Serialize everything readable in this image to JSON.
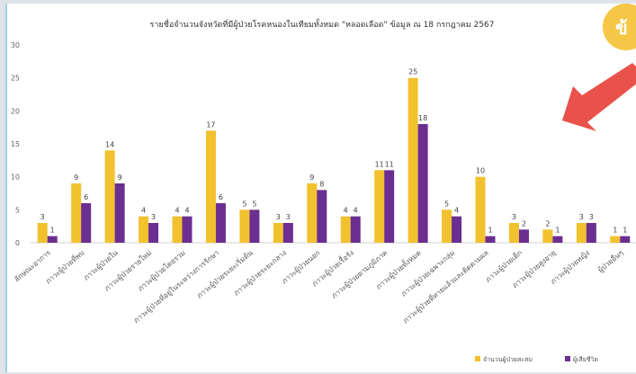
{
  "colors": {
    "series_a": "#f2c12e",
    "series_b": "#6b2e91",
    "arrow": "#e8524a",
    "badge": "#f6c646",
    "grid": "#e6e6e6",
    "panel_border": "#9ed3e6"
  },
  "badge": {
    "text": "ข้",
    "icon": "badge-circle"
  },
  "chart_data": {
    "type": "bar",
    "title": "รายชื่อจำนวนจังหวัดที่มีผู้ป่วยโรคหนองในเทียมทั้งหมด \"หลอดเลือด\" ข้อมูล ณ 18 กรกฎาคม 2567",
    "categories": [
      "ลักษณะอาการ",
      "ภาวะผู้ป่วยที่พบ",
      "ภาวะผู้ป่วยใน",
      "ภาวะผู้ป่วยรายใหม่",
      "ภาวะผู้ป่วยโดยรวม",
      "ภาวะผู้ป่วยที่อยู่ในระหว่างการรักษา",
      "ภาวะผู้ป่วยระยะเริ่มต้น",
      "ภาวะผู้ป่วยระยะกลาง",
      "ภาวะผู้ป่วยนอก",
      "ภาวะผู้ป่วยเรื้อรัง",
      "ภาวะผู้ป่วยตามภูมิภาค",
      "ภาวะผู้ป่วยทั้งหมด",
      "ภาวะผู้ป่วยเฉพาะกลุ่ม",
      "ภาวะผู้ป่วยที่หายแล้วและติดตามผล",
      "ภาวะผู้ป่วยเด็ก",
      "ภาวะผู้ป่วยสูงอายุ",
      "ภาวะผู้ป่วยหญิง",
      "ผู้ป่วยอื่นๆ"
    ],
    "series": [
      {
        "name": "จำนวนผู้ป่วยสะสม",
        "values": [
          3,
          9,
          14,
          4,
          4,
          17,
          5,
          3,
          9,
          4,
          11,
          25,
          5,
          10,
          3,
          2,
          3,
          1
        ]
      },
      {
        "name": "ผู้เสียชีวิต",
        "values": [
          1,
          6,
          9,
          3,
          4,
          6,
          5,
          3,
          8,
          4,
          11,
          18,
          4,
          1,
          2,
          1,
          3,
          1
        ]
      }
    ],
    "ylim": [
      0,
      30
    ],
    "yticks": [
      "0",
      "5",
      "10",
      "15",
      "20",
      "25",
      "30"
    ],
    "grid": false,
    "legend_position": "bottom-right"
  }
}
